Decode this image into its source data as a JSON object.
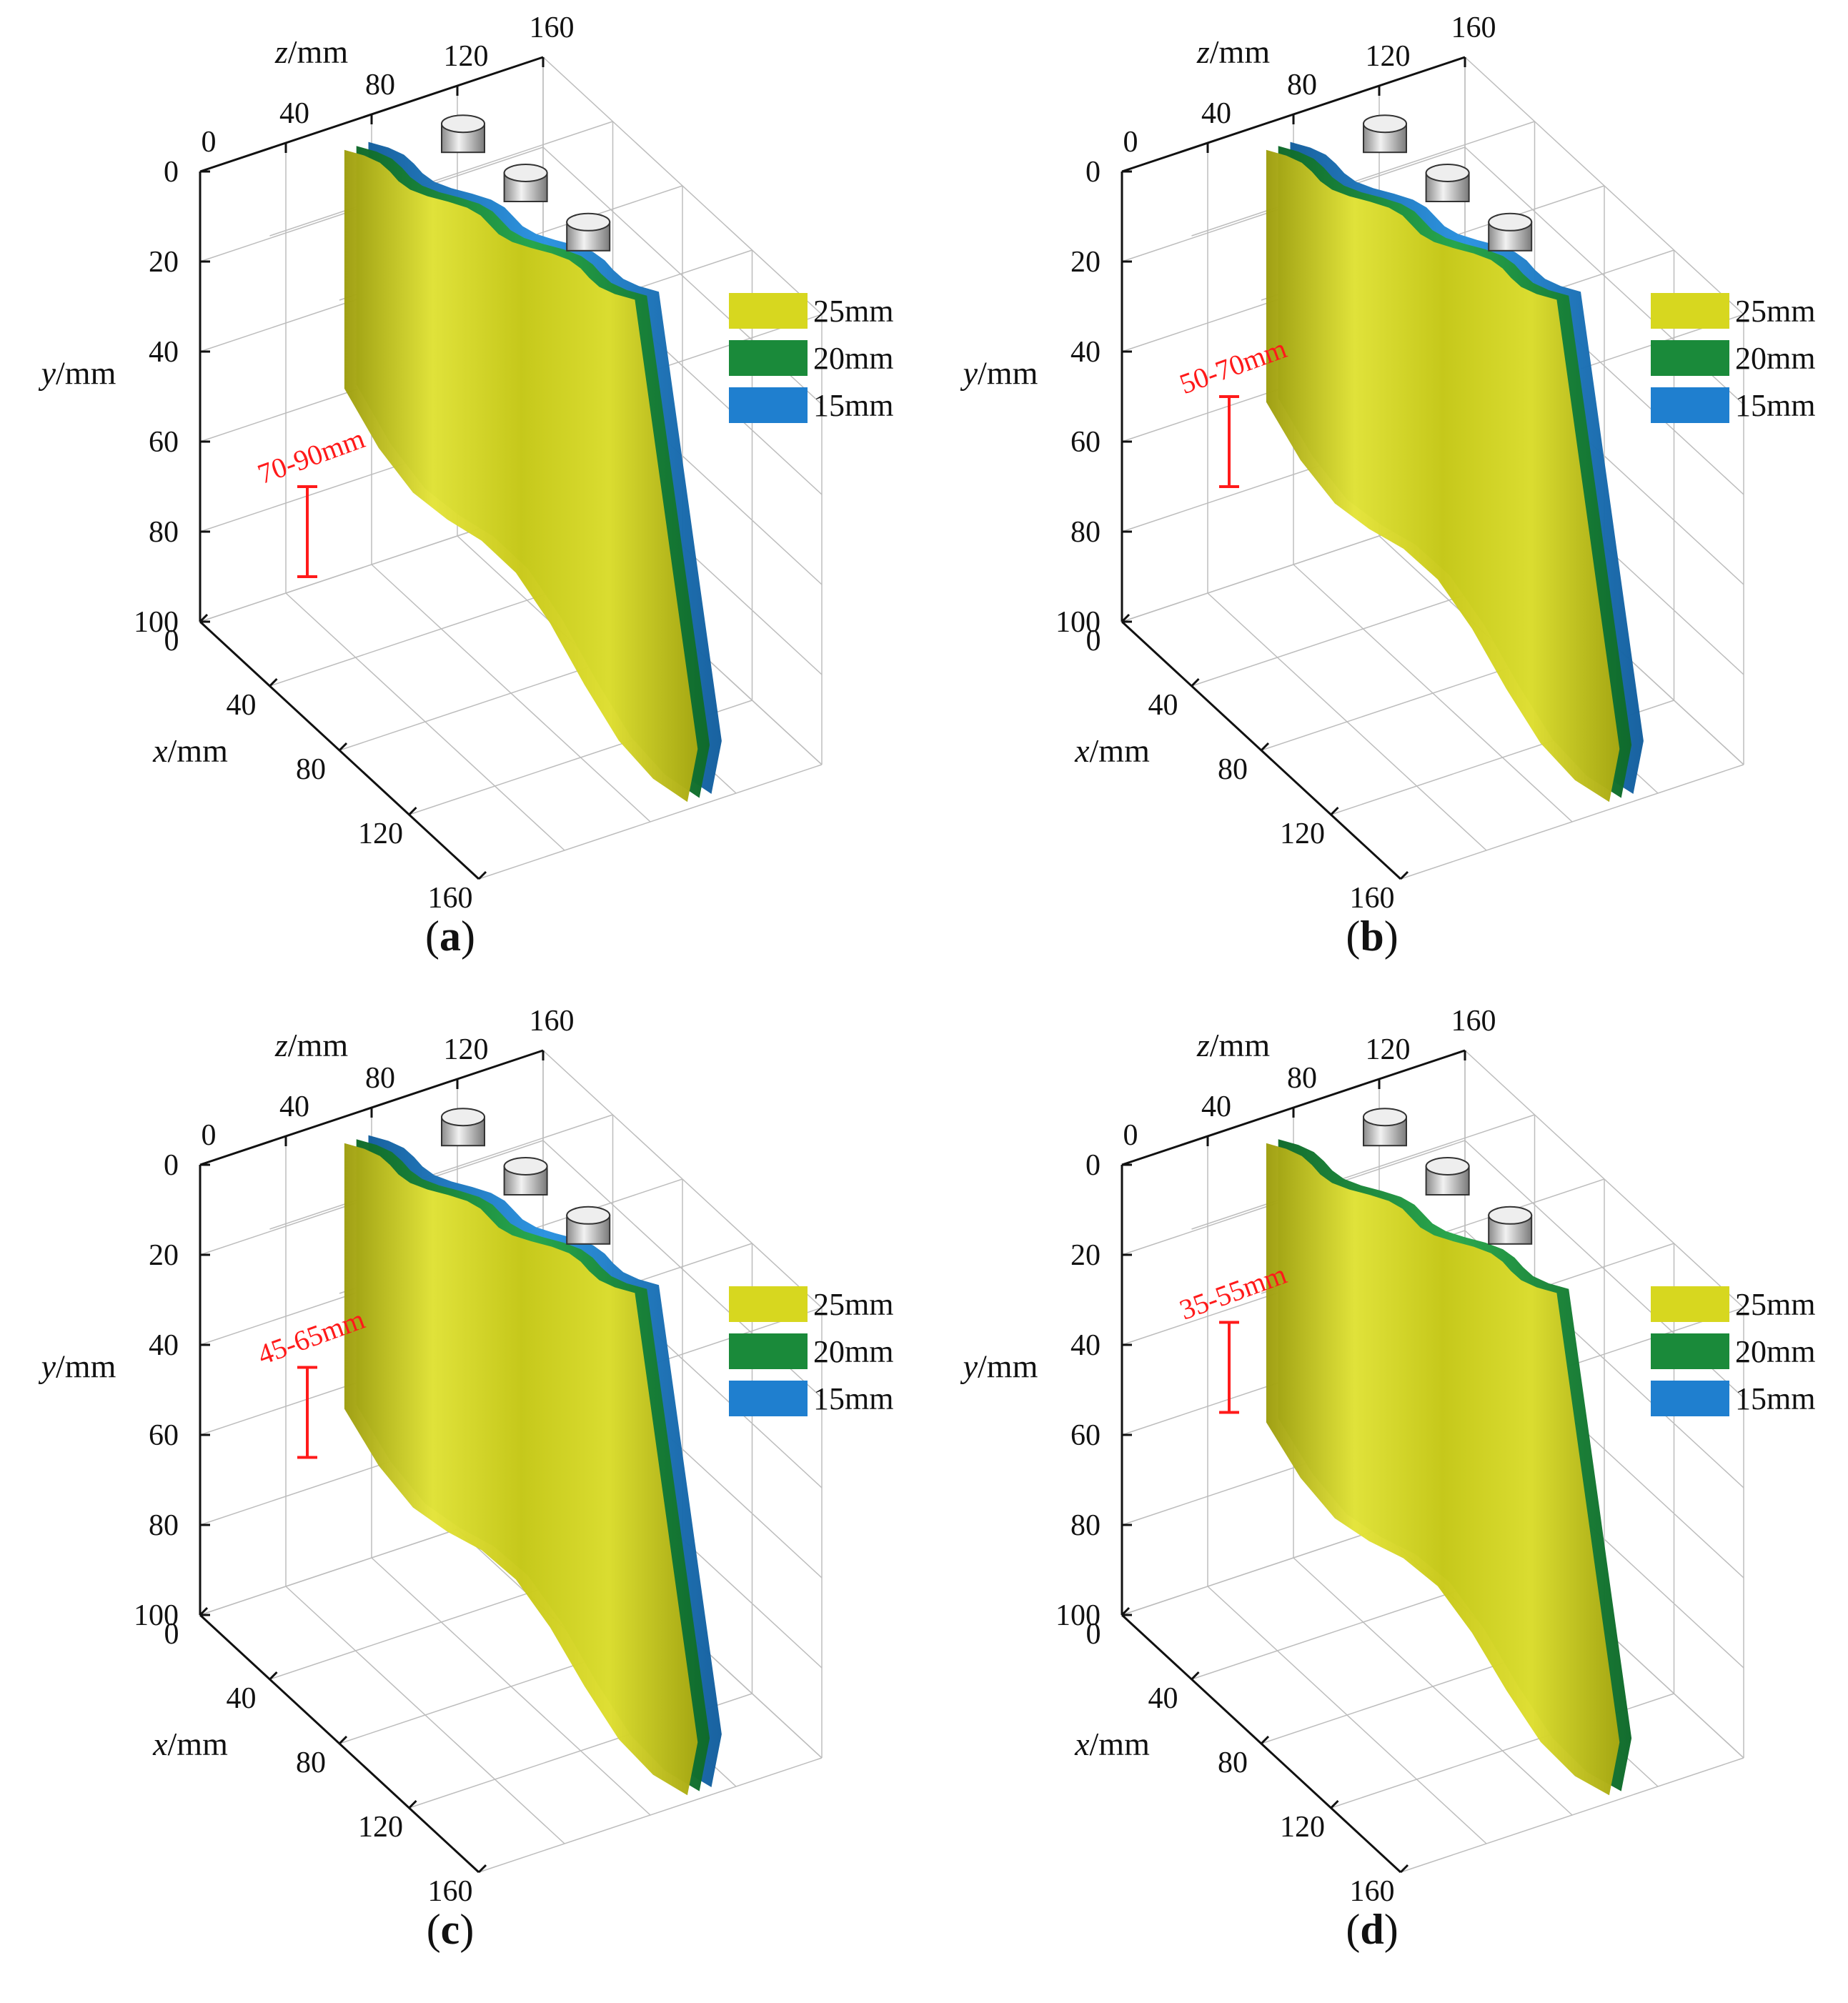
{
  "colors": {
    "yellow": "#d7d71f",
    "green": "#1a8a3a",
    "blue": "#1f7fcf",
    "annotation": "#ff1a1a"
  },
  "chart_data": [
    {
      "type": "3d-surface",
      "panel": "(a)",
      "panel_letter": "a",
      "xlabel": "x/mm",
      "ylabel": "y/mm",
      "zlabel": "z/mm",
      "x_ticks": [
        "0",
        "40",
        "80",
        "120",
        "160"
      ],
      "y_ticks": [
        "0",
        "20",
        "40",
        "60",
        "80",
        "100"
      ],
      "z_ticks": [
        "0",
        "40",
        "80",
        "120",
        "160"
      ],
      "xlim": [
        0,
        160
      ],
      "ylim": [
        0,
        100
      ],
      "zlim": [
        0,
        160
      ],
      "legend": [
        "25mm",
        "20mm",
        "15mm"
      ],
      "legend_placement": "right",
      "annotation": "70-90mm",
      "annotation_range": [
        70,
        90
      ],
      "series_visible": [
        "25mm",
        "20mm",
        "15mm"
      ],
      "pillars": 3
    },
    {
      "type": "3d-surface",
      "panel": "(b)",
      "panel_letter": "b",
      "xlabel": "x/mm",
      "ylabel": "y/mm",
      "zlabel": "z/mm",
      "x_ticks": [
        "0",
        "40",
        "80",
        "120",
        "160"
      ],
      "y_ticks": [
        "0",
        "20",
        "40",
        "60",
        "80",
        "100"
      ],
      "z_ticks": [
        "0",
        "40",
        "80",
        "120",
        "160"
      ],
      "xlim": [
        0,
        160
      ],
      "ylim": [
        0,
        100
      ],
      "zlim": [
        0,
        160
      ],
      "legend": [
        "25mm",
        "20mm",
        "15mm"
      ],
      "legend_placement": "right",
      "annotation": "50-70mm",
      "annotation_range": [
        50,
        70
      ],
      "series_visible": [
        "25mm",
        "20mm",
        "15mm"
      ],
      "pillars": 3
    },
    {
      "type": "3d-surface",
      "panel": "(c)",
      "panel_letter": "c",
      "xlabel": "x/mm",
      "ylabel": "y/mm",
      "zlabel": "z/mm",
      "x_ticks": [
        "0",
        "40",
        "80",
        "120",
        "160"
      ],
      "y_ticks": [
        "0",
        "20",
        "40",
        "60",
        "80",
        "100"
      ],
      "z_ticks": [
        "0",
        "40",
        "80",
        "120",
        "160"
      ],
      "xlim": [
        0,
        160
      ],
      "ylim": [
        0,
        100
      ],
      "zlim": [
        0,
        160
      ],
      "legend": [
        "25mm",
        "20mm",
        "15mm"
      ],
      "legend_placement": "right",
      "annotation": "45-65mm",
      "annotation_range": [
        45,
        65
      ],
      "series_visible": [
        "25mm",
        "20mm",
        "15mm"
      ],
      "pillars": 3
    },
    {
      "type": "3d-surface",
      "panel": "(d)",
      "panel_letter": "d",
      "xlabel": "x/mm",
      "ylabel": "y/mm",
      "zlabel": "z/mm",
      "x_ticks": [
        "0",
        "40",
        "80",
        "120",
        "160"
      ],
      "y_ticks": [
        "0",
        "20",
        "40",
        "60",
        "80",
        "100"
      ],
      "z_ticks": [
        "0",
        "40",
        "80",
        "120",
        "160"
      ],
      "xlim": [
        0,
        160
      ],
      "ylim": [
        0,
        100
      ],
      "zlim": [
        0,
        160
      ],
      "legend": [
        "25mm",
        "20mm",
        "15mm"
      ],
      "legend_placement": "right",
      "annotation": "35-55mm",
      "annotation_range": [
        35,
        55
      ],
      "series_visible": [
        "25mm",
        "20mm"
      ],
      "pillars": 3
    }
  ]
}
